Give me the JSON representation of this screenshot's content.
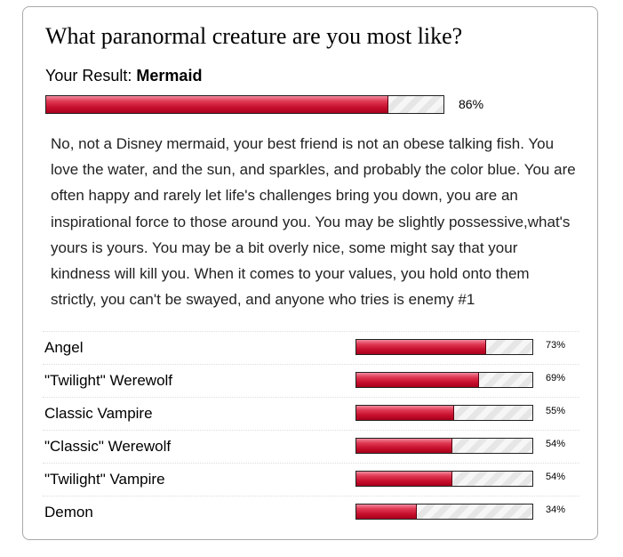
{
  "quiz": {
    "title": "What paranormal creature are you most like?"
  },
  "result": {
    "label": "Your Result:",
    "name": "Mermaid",
    "percent_text": "86%",
    "percent": 86,
    "description": "No, not a Disney mermaid, your best friend is not an obese talking fish. You love the water, and the sun, and sparkles, and probably the color blue. You are often happy and rarely let life's challenges bring you down, you are an inspirational force to those around you. You may be slightly possessive,what's yours is yours. You may be a bit overly nice, some might say that your kindness will kill you. When it comes to your values, you hold onto them strictly, you can't be swayed, and anyone who tries is enemy #1"
  },
  "other_results": [
    {
      "name": "Angel",
      "percent_text": "73%",
      "percent": 73
    },
    {
      "name": "\"Twilight\" Werewolf",
      "percent_text": "69%",
      "percent": 69
    },
    {
      "name": "Classic Vampire",
      "percent_text": "55%",
      "percent": 55
    },
    {
      "name": "\"Classic\" Werewolf",
      "percent_text": "54%",
      "percent": 54
    },
    {
      "name": "\"Twilight\" Vampire",
      "percent_text": "54%",
      "percent": 54
    },
    {
      "name": "Demon",
      "percent_text": "34%",
      "percent": 34
    }
  ],
  "colors": {
    "bar_fill": "#c8102e",
    "bar_track": "#f2f2f2",
    "card_border": "#a9a9a9"
  }
}
